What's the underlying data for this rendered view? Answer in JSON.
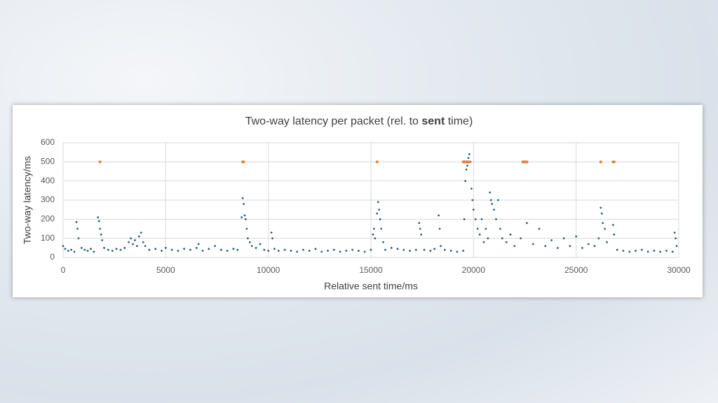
{
  "chart_data": {
    "type": "scatter",
    "title_parts": [
      "Two-way latency per packet (rel. to ",
      "sent",
      " time)"
    ],
    "title_bold_part": 1,
    "x_label": "Relative sent time/ms",
    "y_label": "Two-way latency/ms",
    "xlim": [
      0,
      30000
    ],
    "xticks": [
      0,
      5000,
      10000,
      15000,
      20000,
      25000,
      30000
    ],
    "ylim": [
      0,
      600
    ],
    "yticks": [
      0,
      100,
      200,
      300,
      400,
      500,
      600
    ],
    "grid": true,
    "series": [
      {
        "color": "#2e5f78",
        "x": [
          0,
          100,
          250,
          400,
          550,
          650,
          700,
          750,
          900,
          1050,
          1200,
          1350,
          1500,
          1700,
          1750,
          1800,
          1850,
          1900,
          2000,
          2200,
          2400,
          2600,
          2800,
          3000,
          3200,
          3300,
          3400,
          3500,
          3600,
          3700,
          3800,
          3900,
          4000,
          4200,
          4500,
          4800,
          5000,
          5300,
          5600,
          5900,
          6200,
          6500,
          6600,
          6800,
          7100,
          7400,
          7700,
          8000,
          8300,
          8500,
          8700,
          8750,
          8800,
          8850,
          8900,
          8950,
          9000,
          9100,
          9200,
          9400,
          9600,
          9800,
          10000,
          10150,
          10200,
          10300,
          10500,
          10800,
          11100,
          11400,
          11700,
          12000,
          12300,
          12600,
          12900,
          13200,
          13500,
          13800,
          14100,
          14400,
          14700,
          15000,
          15100,
          15150,
          15200,
          15300,
          15350,
          15400,
          15450,
          15500,
          15600,
          15700,
          16000,
          16300,
          16600,
          16900,
          17200,
          17350,
          17400,
          17450,
          17600,
          17900,
          18100,
          18300,
          18350,
          18400,
          18600,
          18900,
          19200,
          19500,
          19550,
          19600,
          19650,
          19700,
          19750,
          19800,
          19850,
          19900,
          19950,
          20000,
          20100,
          20200,
          20300,
          20400,
          20500,
          20600,
          20700,
          20800,
          20850,
          20900,
          21000,
          21100,
          21200,
          21300,
          21400,
          21600,
          21800,
          22000,
          22300,
          22600,
          22900,
          23200,
          23500,
          23800,
          24100,
          24400,
          24700,
          25000,
          25300,
          25600,
          25900,
          26100,
          26200,
          26250,
          26300,
          26400,
          26500,
          26800,
          26850,
          27000,
          27300,
          27600,
          27900,
          28200,
          28500,
          28800,
          29100,
          29400,
          29700,
          29800,
          29850,
          29900
        ],
        "values": [
          60,
          45,
          35,
          40,
          30,
          185,
          150,
          100,
          50,
          40,
          35,
          45,
          30,
          210,
          190,
          150,
          120,
          90,
          50,
          40,
          35,
          45,
          40,
          50,
          80,
          100,
          70,
          90,
          60,
          110,
          130,
          80,
          60,
          40,
          45,
          35,
          50,
          40,
          35,
          45,
          40,
          50,
          70,
          35,
          45,
          60,
          40,
          35,
          45,
          40,
          210,
          310,
          280,
          220,
          200,
          150,
          100,
          80,
          60,
          50,
          70,
          40,
          35,
          130,
          100,
          45,
          35,
          40,
          35,
          30,
          40,
          35,
          45,
          30,
          35,
          40,
          30,
          35,
          40,
          35,
          30,
          40,
          120,
          150,
          100,
          230,
          290,
          250,
          200,
          150,
          80,
          40,
          50,
          45,
          40,
          35,
          40,
          180,
          150,
          120,
          40,
          35,
          45,
          220,
          150,
          60,
          40,
          35,
          30,
          35,
          200,
          400,
          460,
          480,
          520,
          540,
          500,
          360,
          300,
          250,
          200,
          150,
          120,
          200,
          80,
          150,
          100,
          340,
          300,
          280,
          250,
          200,
          300,
          150,
          100,
          80,
          120,
          60,
          100,
          180,
          70,
          150,
          60,
          90,
          50,
          100,
          60,
          110,
          50,
          70,
          60,
          100,
          260,
          230,
          180,
          150,
          80,
          170,
          120,
          40,
          35,
          30,
          35,
          40,
          30,
          35,
          30,
          35,
          30,
          130,
          100,
          60
        ]
      },
      {
        "color": "#e8803a",
        "x": [
          1800,
          8750,
          8800,
          15300,
          19500,
          19550,
          19600,
          19650,
          19700,
          19750,
          19800,
          22400,
          22450,
          22500,
          22550,
          22600,
          26200,
          26800,
          26850
        ],
        "values": [
          500,
          500,
          500,
          500,
          500,
          500,
          500,
          500,
          500,
          500,
          500,
          500,
          500,
          500,
          500,
          500,
          500,
          500,
          500
        ]
      }
    ]
  }
}
